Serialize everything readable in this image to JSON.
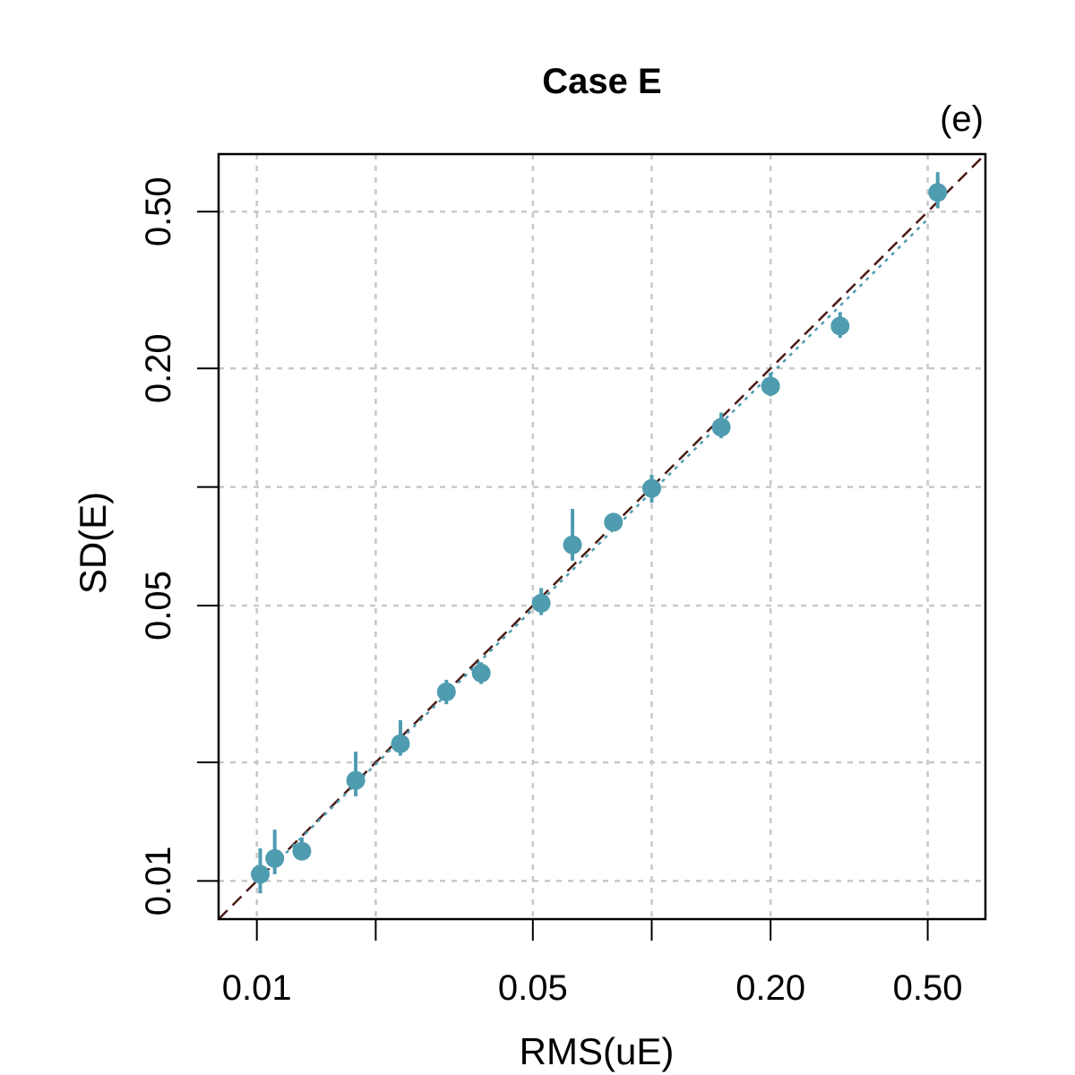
{
  "chart_data": {
    "type": "scatter",
    "title": "Case E",
    "panel_label": "(e)",
    "xlabel": "RMS(uE)",
    "ylabel": "SD(E)",
    "xscale": "log",
    "yscale": "log",
    "xlim": [
      0.008,
      0.7
    ],
    "ylim": [
      0.008,
      0.7
    ],
    "grid": true,
    "x_ticks": [
      0.01,
      0.02,
      0.05,
      0.1,
      0.2,
      0.5
    ],
    "x_tick_labels": [
      "0.01",
      "",
      "0.05",
      "",
      "0.20",
      "0.50"
    ],
    "y_ticks": [
      0.01,
      0.02,
      0.05,
      0.1,
      0.2,
      0.5
    ],
    "y_tick_labels": [
      "0.01",
      "",
      "0.05",
      "",
      "0.20",
      "0.50"
    ],
    "colors": {
      "points": "#4f9cb0",
      "identity_line": "#4a1a14",
      "grid": "#c8c8c8",
      "frame": "#000000"
    },
    "identity_line": {
      "style": "dashed",
      "from": [
        0.008,
        0.008
      ],
      "to": [
        0.7,
        0.7
      ]
    },
    "trend_line": {
      "style": "dotted",
      "x_range": [
        0.011,
        0.5
      ]
    },
    "points": [
      {
        "x": 0.0102,
        "y": 0.0104,
        "ylo": 0.0093,
        "yhi": 0.0121
      },
      {
        "x": 0.0111,
        "y": 0.0114,
        "ylo": 0.0104,
        "yhi": 0.0135
      },
      {
        "x": 0.013,
        "y": 0.0119,
        "ylo": 0.0113,
        "yhi": 0.0129
      },
      {
        "x": 0.0178,
        "y": 0.018,
        "ylo": 0.0164,
        "yhi": 0.0213
      },
      {
        "x": 0.0231,
        "y": 0.0223,
        "ylo": 0.0208,
        "yhi": 0.0256
      },
      {
        "x": 0.0302,
        "y": 0.0302,
        "ylo": 0.0281,
        "yhi": 0.0324
      },
      {
        "x": 0.037,
        "y": 0.0337,
        "ylo": 0.0316,
        "yhi": 0.0359
      },
      {
        "x": 0.0525,
        "y": 0.0507,
        "ylo": 0.0473,
        "yhi": 0.0554
      },
      {
        "x": 0.063,
        "y": 0.0713,
        "ylo": 0.065,
        "yhi": 0.088
      },
      {
        "x": 0.08,
        "y": 0.0814,
        "ylo": 0.0776,
        "yhi": 0.0854
      },
      {
        "x": 0.1,
        "y": 0.0992,
        "ylo": 0.0912,
        "yhi": 0.1075
      },
      {
        "x": 0.15,
        "y": 0.1418,
        "ylo": 0.133,
        "yhi": 0.1545
      },
      {
        "x": 0.2,
        "y": 0.1803,
        "ylo": 0.17,
        "yhi": 0.195
      },
      {
        "x": 0.3,
        "y": 0.2562,
        "ylo": 0.239,
        "yhi": 0.278
      },
      {
        "x": 0.53,
        "y": 0.5595,
        "ylo": 0.51,
        "yhi": 0.63
      }
    ]
  }
}
